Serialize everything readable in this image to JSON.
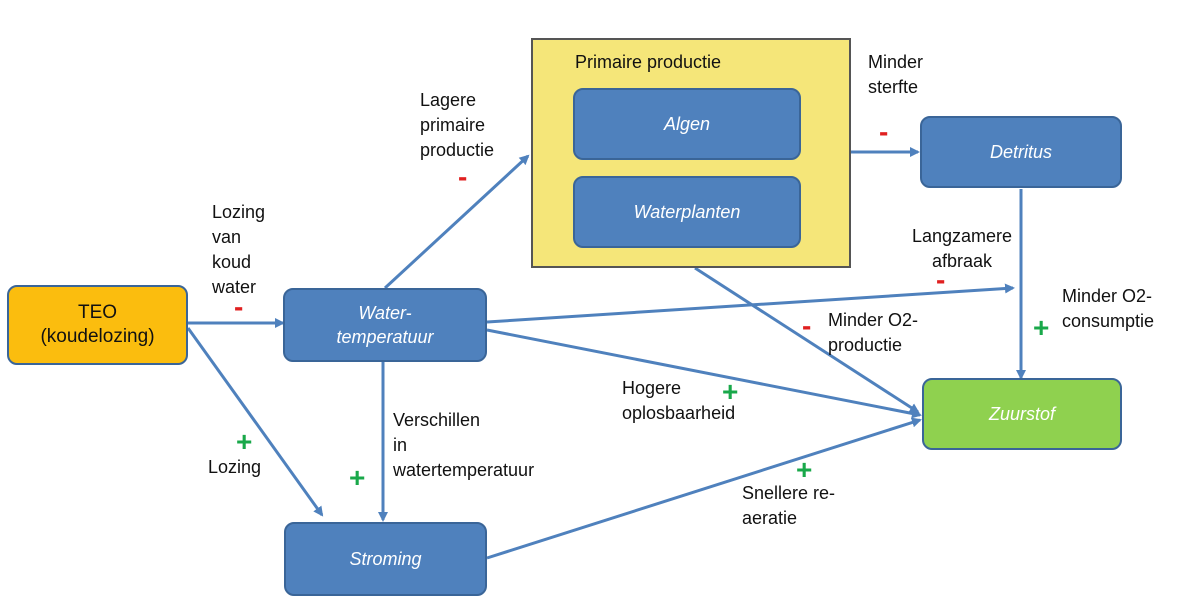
{
  "nodes": {
    "teo": "TEO (koudelozing)",
    "watertemperatuur": "Water-temperatuur",
    "primaire_productie": "Primaire productie",
    "algen": "Algen",
    "waterplanten": "Waterplanten",
    "detritus": "Detritus",
    "zuurstof": "Zuurstof",
    "stroming": "Stroming"
  },
  "edge_labels": {
    "lozing_koud_water": "Lozing van koud water",
    "lagere_primaire_productie": "Lagere primaire productie",
    "minder_sterfte": "Minder sterfte",
    "langzamere_afbraak": "Langzamere afbraak",
    "minder_o2_consumptie": "Minder O2-consumptie",
    "minder_o2_productie": "Minder O2-productie",
    "hogere_oplosbaarheid": "Hogere oplosbaarheid",
    "verschillen_watertemperatuur": "Verschillen in watertemperatuur",
    "lozing": "Lozing",
    "snellere_reaeratie": "Snellere re-aeratie"
  },
  "signs": {
    "lozing_koud_water": "-",
    "lagere_primaire_productie": "-",
    "minder_sterfte": "-",
    "langzamere_afbraak": "-",
    "minder_o2_consumptie": "+",
    "minder_o2_productie": "-",
    "hogere_oplosbaarheid": "+",
    "verschillen_watertemperatuur": "+",
    "lozing": "+",
    "snellere_reaeratie": "+"
  },
  "colors": {
    "node_blue": "#4f81bd",
    "node_orange": "#fbbd0e",
    "node_green": "#8fd14f",
    "group_yellow": "#f5e679",
    "arrow": "#4f81bd",
    "minus": "#e02020",
    "plus": "#19a84a"
  }
}
